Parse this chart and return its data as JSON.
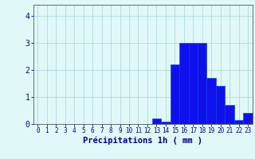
{
  "hours": [
    0,
    1,
    2,
    3,
    4,
    5,
    6,
    7,
    8,
    9,
    10,
    11,
    12,
    13,
    14,
    15,
    16,
    17,
    18,
    19,
    20,
    21,
    22,
    23
  ],
  "values": [
    0,
    0,
    0,
    0,
    0,
    0,
    0,
    0,
    0,
    0,
    0,
    0,
    0,
    0.2,
    0.1,
    2.2,
    3.0,
    3.0,
    3.0,
    1.7,
    1.4,
    0.7,
    0.15,
    0.4
  ],
  "bar_color": "#1010ee",
  "bar_edge_color": "#0040cc",
  "background_color": "#e0f8f8",
  "grid_color": "#b0d8d8",
  "axis_color": "#555555",
  "xlabel": "Précipitations 1h ( mm )",
  "xlabel_fontsize": 7.5,
  "ylabel_ticks": [
    0,
    1,
    2,
    3,
    4
  ],
  "ylim": [
    0,
    4.4
  ],
  "xlim": [
    -0.5,
    23.5
  ],
  "tick_color": "#00008B",
  "ytick_fontsize": 7,
  "xtick_fontsize": 5.5
}
